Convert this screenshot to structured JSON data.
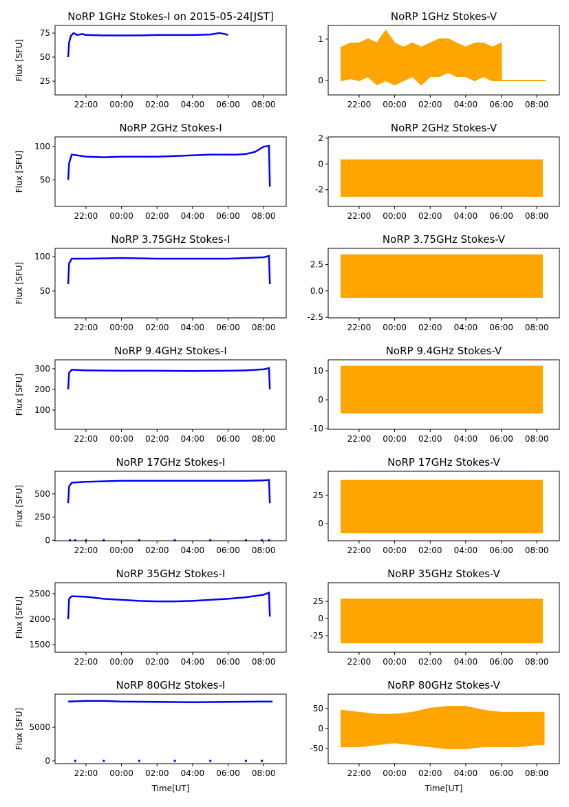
{
  "chart_data": [
    {
      "type": "line",
      "title": "NoRP 1GHz Stokes-I on 2015-05-24[JST]",
      "ylabel": "Flux [SFU]",
      "color": "blue",
      "x": [
        21,
        21.05,
        21.15,
        21.3,
        21.5,
        21.8,
        22,
        23,
        24,
        25,
        26,
        27,
        28,
        29,
        29.5,
        29.8,
        30
      ],
      "values": [
        50,
        65,
        72,
        75,
        73,
        74,
        73,
        72.5,
        72.5,
        72.5,
        73,
        73,
        73,
        73.5,
        75,
        74,
        73
      ],
      "xlim": [
        20.26,
        33.27
      ],
      "xticks": [
        {
          "value": 22,
          "label": "22:00"
        },
        {
          "value": 24,
          "label": "00:00"
        },
        {
          "value": 26,
          "label": "02:00"
        },
        {
          "value": 28,
          "label": "04:00"
        },
        {
          "value": 30,
          "label": "06:00"
        },
        {
          "value": 32,
          "label": "08:00"
        }
      ],
      "ylim": [
        10.7,
        82.9
      ],
      "yticks": [
        25,
        50,
        75
      ]
    },
    {
      "type": "band",
      "title": "NoRP 1GHz Stokes-V",
      "color": "orange",
      "x": [
        21,
        21.5,
        22,
        22.5,
        23,
        23.5,
        24,
        24.5,
        25,
        25.5,
        26,
        26.5,
        27,
        27.5,
        28,
        28.5,
        29,
        29.5,
        29.99,
        30,
        32.5
      ],
      "low": [
        0,
        0.05,
        0,
        0.1,
        -0.1,
        0,
        -0.1,
        0,
        0.1,
        -0.1,
        0.1,
        0.1,
        0.2,
        0.1,
        0.1,
        0,
        0.1,
        0,
        0,
        0,
        0
      ],
      "high": [
        0.8,
        0.9,
        0.9,
        1,
        0.9,
        1.2,
        0.9,
        0.8,
        0.9,
        0.8,
        0.9,
        1,
        1,
        0.9,
        0.8,
        0.9,
        0.9,
        0.8,
        0.9,
        0,
        0
      ],
      "xlim": [
        20.26,
        33.27
      ],
      "xticks": [
        {
          "value": 22,
          "label": "22:00"
        },
        {
          "value": 24,
          "label": "00:00"
        },
        {
          "value": 26,
          "label": "02:00"
        },
        {
          "value": 28,
          "label": "04:00"
        },
        {
          "value": 30,
          "label": "06:00"
        },
        {
          "value": 32,
          "label": "08:00"
        }
      ],
      "ylim": [
        -0.35,
        1.33
      ],
      "yticks": [
        0,
        1
      ]
    },
    {
      "type": "line",
      "title": "NoRP 2GHz Stokes-I",
      "ylabel": "Flux [SFU]",
      "color": "blue",
      "x": [
        21,
        21.05,
        21.2,
        21.5,
        22,
        23,
        24,
        25,
        26,
        27,
        28,
        29,
        30,
        30.5,
        31,
        31.5,
        32,
        32.3,
        32.35
      ],
      "values": [
        50,
        75,
        88,
        87,
        85,
        84,
        85,
        85,
        85,
        86,
        87,
        88,
        88,
        88,
        89,
        92,
        100,
        101,
        40
      ],
      "xlim": [
        20.26,
        33.27
      ],
      "xticks": [
        {
          "value": 22,
          "label": "22:00"
        },
        {
          "value": 24,
          "label": "00:00"
        },
        {
          "value": 26,
          "label": "02:00"
        },
        {
          "value": 28,
          "label": "04:00"
        },
        {
          "value": 30,
          "label": "06:00"
        },
        {
          "value": 32,
          "label": "08:00"
        }
      ],
      "ylim": [
        10.4,
        114.6
      ],
      "yticks": [
        50,
        100
      ]
    },
    {
      "type": "band",
      "title": "NoRP 2GHz Stokes-V",
      "color": "orange",
      "x": [
        21,
        32.3
      ],
      "low": [
        -2.5,
        -2.5
      ],
      "high": [
        0.3,
        0.3
      ],
      "xlim": [
        20.26,
        33.27
      ],
      "xticks": [
        {
          "value": 22,
          "label": "22:00"
        },
        {
          "value": 24,
          "label": "00:00"
        },
        {
          "value": 26,
          "label": "02:00"
        },
        {
          "value": 28,
          "label": "04:00"
        },
        {
          "value": 30,
          "label": "06:00"
        },
        {
          "value": 32,
          "label": "08:00"
        }
      ],
      "ylim": [
        -3.3,
        2.1
      ],
      "yticks": [
        -2,
        0,
        2
      ]
    },
    {
      "type": "line",
      "title": "NoRP 3.75GHz Stokes-I",
      "ylabel": "Flux [SFU]",
      "color": "blue",
      "x": [
        21,
        21.05,
        21.2,
        22,
        24,
        26,
        28,
        30,
        31,
        32,
        32.3,
        32.35
      ],
      "values": [
        60,
        90,
        97,
        97,
        98,
        97,
        97,
        97,
        98,
        99,
        101,
        60
      ],
      "xlim": [
        20.26,
        33.27
      ],
      "xticks": [
        {
          "value": 22,
          "label": "22:00"
        },
        {
          "value": 24,
          "label": "00:00"
        },
        {
          "value": 26,
          "label": "02:00"
        },
        {
          "value": 28,
          "label": "04:00"
        },
        {
          "value": 30,
          "label": "06:00"
        },
        {
          "value": 32,
          "label": "08:00"
        }
      ],
      "ylim": [
        11,
        112
      ],
      "yticks": [
        50,
        100
      ]
    },
    {
      "type": "band",
      "title": "NoRP 3.75GHz Stokes-V",
      "color": "orange",
      "x": [
        21,
        32.3
      ],
      "low": [
        -0.6,
        -0.6
      ],
      "high": [
        3.4,
        3.4
      ],
      "xlim": [
        20.26,
        33.27
      ],
      "xticks": [
        {
          "value": 22,
          "label": "22:00"
        },
        {
          "value": 24,
          "label": "00:00"
        },
        {
          "value": 26,
          "label": "02:00"
        },
        {
          "value": 28,
          "label": "04:00"
        },
        {
          "value": 30,
          "label": "06:00"
        },
        {
          "value": 32,
          "label": "08:00"
        }
      ],
      "ylim": [
        -2.56,
        4.04
      ],
      "yticks": [
        -2.5,
        {
          "value": 0,
          "label": "0.0"
        },
        2.5
      ]
    },
    {
      "type": "line",
      "title": "NoRP 9.4GHz Stokes-I",
      "ylabel": "Flux [SFU]",
      "color": "blue",
      "x": [
        21,
        21.05,
        21.2,
        22,
        24,
        26,
        28,
        30,
        31,
        32,
        32.3,
        32.35
      ],
      "values": [
        200,
        280,
        295,
        292,
        290,
        290,
        289,
        290,
        292,
        297,
        303,
        200
      ],
      "xlim": [
        20.26,
        33.27
      ],
      "xticks": [
        {
          "value": 22,
          "label": "22:00"
        },
        {
          "value": 24,
          "label": "00:00"
        },
        {
          "value": 26,
          "label": "02:00"
        },
        {
          "value": 28,
          "label": "04:00"
        },
        {
          "value": 30,
          "label": "06:00"
        },
        {
          "value": 32,
          "label": "08:00"
        }
      ],
      "ylim": [
        7,
        343
      ],
      "yticks": [
        100,
        200,
        300
      ]
    },
    {
      "type": "band",
      "title": "NoRP 9.4GHz Stokes-V",
      "color": "orange",
      "x": [
        21,
        32.3
      ],
      "low": [
        -4.5,
        -4.5
      ],
      "high": [
        11.5,
        11.5
      ],
      "xlim": [
        20.26,
        33.27
      ],
      "xticks": [
        {
          "value": 22,
          "label": "22:00"
        },
        {
          "value": 24,
          "label": "00:00"
        },
        {
          "value": 26,
          "label": "02:00"
        },
        {
          "value": 28,
          "label": "04:00"
        },
        {
          "value": 30,
          "label": "06:00"
        },
        {
          "value": 32,
          "label": "08:00"
        }
      ],
      "ylim": [
        -10.2,
        13.8
      ],
      "yticks": [
        -10,
        0,
        10
      ]
    },
    {
      "type": "line",
      "title": "NoRP 17GHz Stokes-I",
      "ylabel": "Flux [SFU]",
      "color": "blue",
      "x": [
        21,
        21.05,
        21.2,
        22,
        24,
        26,
        28,
        30,
        31,
        32,
        32.3,
        32.35
      ],
      "values": [
        400,
        580,
        620,
        630,
        640,
        640,
        640,
        640,
        640,
        645,
        650,
        400
      ],
      "points": {
        "x": [
          21.1,
          21.4,
          22,
          23,
          25,
          27,
          29,
          31,
          31.9,
          32.3
        ],
        "values": [
          0,
          0,
          0,
          0,
          0,
          0,
          0,
          0,
          0,
          0
        ]
      },
      "xlim": [
        20.26,
        33.27
      ],
      "xticks": [
        {
          "value": 22,
          "label": "22:00"
        },
        {
          "value": 24,
          "label": "00:00"
        },
        {
          "value": 26,
          "label": "02:00"
        },
        {
          "value": 28,
          "label": "04:00"
        },
        {
          "value": 30,
          "label": "06:00"
        },
        {
          "value": 32,
          "label": "08:00"
        }
      ],
      "ylim": [
        -5,
        743
      ],
      "yticks": [
        0,
        250,
        500
      ]
    },
    {
      "type": "band",
      "title": "NoRP 17GHz Stokes-V",
      "color": "orange",
      "x": [
        21,
        32.3
      ],
      "low": [
        -8,
        -8
      ],
      "high": [
        38,
        38
      ],
      "xlim": [
        20.26,
        33.27
      ],
      "xticks": [
        {
          "value": 22,
          "label": "22:00"
        },
        {
          "value": 24,
          "label": "00:00"
        },
        {
          "value": 26,
          "label": "02:00"
        },
        {
          "value": 28,
          "label": "04:00"
        },
        {
          "value": 30,
          "label": "06:00"
        },
        {
          "value": 32,
          "label": "08:00"
        }
      ],
      "ylim": [
        -15.2,
        46.3
      ],
      "yticks": [
        0,
        25
      ]
    },
    {
      "type": "line",
      "title": "NoRP 35GHz Stokes-I",
      "ylabel": "Flux [SFU]",
      "color": "blue",
      "x": [
        21,
        21.05,
        21.2,
        22,
        23,
        24,
        25,
        26,
        27,
        28,
        29,
        30,
        31,
        32,
        32.3,
        32.35
      ],
      "values": [
        2000,
        2400,
        2450,
        2440,
        2400,
        2380,
        2360,
        2350,
        2350,
        2360,
        2380,
        2400,
        2430,
        2480,
        2520,
        2050
      ],
      "xlim": [
        20.26,
        33.27
      ],
      "xticks": [
        {
          "value": 22,
          "label": "22:00"
        },
        {
          "value": 24,
          "label": "00:00"
        },
        {
          "value": 26,
          "label": "02:00"
        },
        {
          "value": 28,
          "label": "04:00"
        },
        {
          "value": 30,
          "label": "06:00"
        },
        {
          "value": 32,
          "label": "08:00"
        }
      ],
      "ylim": [
        1351,
        2716
      ],
      "yticks": [
        1500,
        2000,
        2500
      ]
    },
    {
      "type": "band",
      "title": "NoRP 35GHz Stokes-V",
      "color": "orange",
      "x": [
        21,
        32.3
      ],
      "low": [
        -35,
        -35
      ],
      "high": [
        28,
        28
      ],
      "xlim": [
        20.26,
        33.27
      ],
      "xticks": [
        {
          "value": 22,
          "label": "22:00"
        },
        {
          "value": 24,
          "label": "00:00"
        },
        {
          "value": 26,
          "label": "02:00"
        },
        {
          "value": 28,
          "label": "04:00"
        },
        {
          "value": 30,
          "label": "06:00"
        },
        {
          "value": 32,
          "label": "08:00"
        }
      ],
      "ylim": [
        -49,
        52
      ],
      "yticks": [
        -25,
        0,
        25
      ]
    },
    {
      "type": "line",
      "title": "NoRP 80GHz Stokes-I",
      "ylabel": "Flux [SFU]",
      "xlabel": "Time[UT]",
      "color": "blue",
      "x": [
        21,
        22,
        23,
        24,
        26,
        28,
        30,
        32,
        32.5
      ],
      "values": [
        8800,
        8900,
        8900,
        8800,
        8750,
        8700,
        8750,
        8800,
        8800
      ],
      "points": {
        "x": [
          21.4,
          23,
          25,
          27,
          29,
          31,
          31.9
        ],
        "values": [
          0,
          0,
          0,
          0,
          0,
          0,
          0
        ]
      },
      "xlim": [
        20.26,
        33.27
      ],
      "xticks": [
        {
          "value": 22,
          "label": "22:00"
        },
        {
          "value": 24,
          "label": "00:00"
        },
        {
          "value": 26,
          "label": "02:00"
        },
        {
          "value": 28,
          "label": "04:00"
        },
        {
          "value": 30,
          "label": "06:00"
        },
        {
          "value": 32,
          "label": "08:00"
        }
      ],
      "ylim": [
        -408,
        9898
      ],
      "yticks": [
        0,
        5000
      ]
    },
    {
      "type": "band",
      "title": "NoRP 80GHz Stokes-V",
      "xlabel": "Time[UT]",
      "color": "orange",
      "x": [
        21,
        22,
        23,
        24,
        25,
        26,
        27,
        28,
        29,
        30,
        31,
        32,
        32.4
      ],
      "low": [
        -45,
        -45,
        -40,
        -35,
        -40,
        -45,
        -50,
        -50,
        -45,
        -45,
        -45,
        -40,
        -40
      ],
      "high": [
        45,
        40,
        35,
        35,
        40,
        50,
        55,
        55,
        45,
        40,
        40,
        40,
        40
      ],
      "xlim": [
        20.26,
        33.27
      ],
      "xticks": [
        {
          "value": 22,
          "label": "22:00"
        },
        {
          "value": 24,
          "label": "00:00"
        },
        {
          "value": 26,
          "label": "02:00"
        },
        {
          "value": 28,
          "label": "04:00"
        },
        {
          "value": 30,
          "label": "06:00"
        },
        {
          "value": 32,
          "label": "08:00"
        }
      ],
      "ylim": [
        -88,
        86
      ],
      "yticks": [
        -50,
        0,
        50
      ]
    }
  ]
}
